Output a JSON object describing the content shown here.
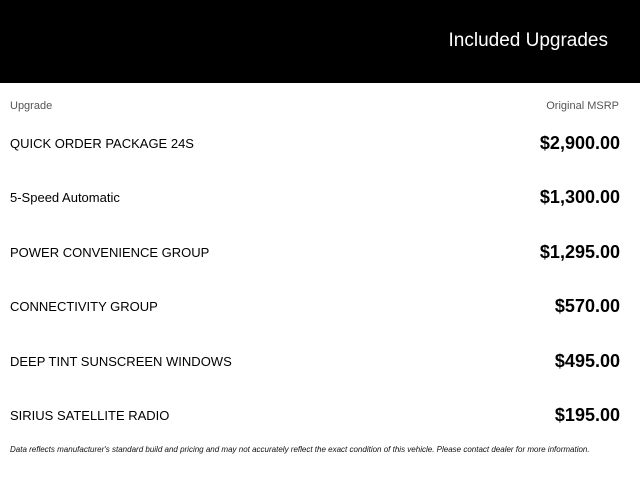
{
  "header": {
    "title": "Included Upgrades"
  },
  "table": {
    "columns": [
      "Upgrade",
      "Original MSRP"
    ],
    "rows": [
      {
        "name": "QUICK ORDER PACKAGE 24S",
        "price": "$2,900.00"
      },
      {
        "name": "5-Speed Automatic",
        "price": "$1,300.00"
      },
      {
        "name": "POWER CONVENIENCE GROUP",
        "price": "$1,295.00"
      },
      {
        "name": "CONNECTIVITY GROUP",
        "price": "$570.00"
      },
      {
        "name": "DEEP TINT SUNSCREEN WINDOWS",
        "price": "$495.00"
      },
      {
        "name": "SIRIUS SATELLITE RADIO",
        "price": "$195.00"
      }
    ]
  },
  "disclaimer": "Data reflects manufacturer's standard build and pricing and may not accurately reflect the exact condition of this vehicle. Please contact dealer for more information."
}
